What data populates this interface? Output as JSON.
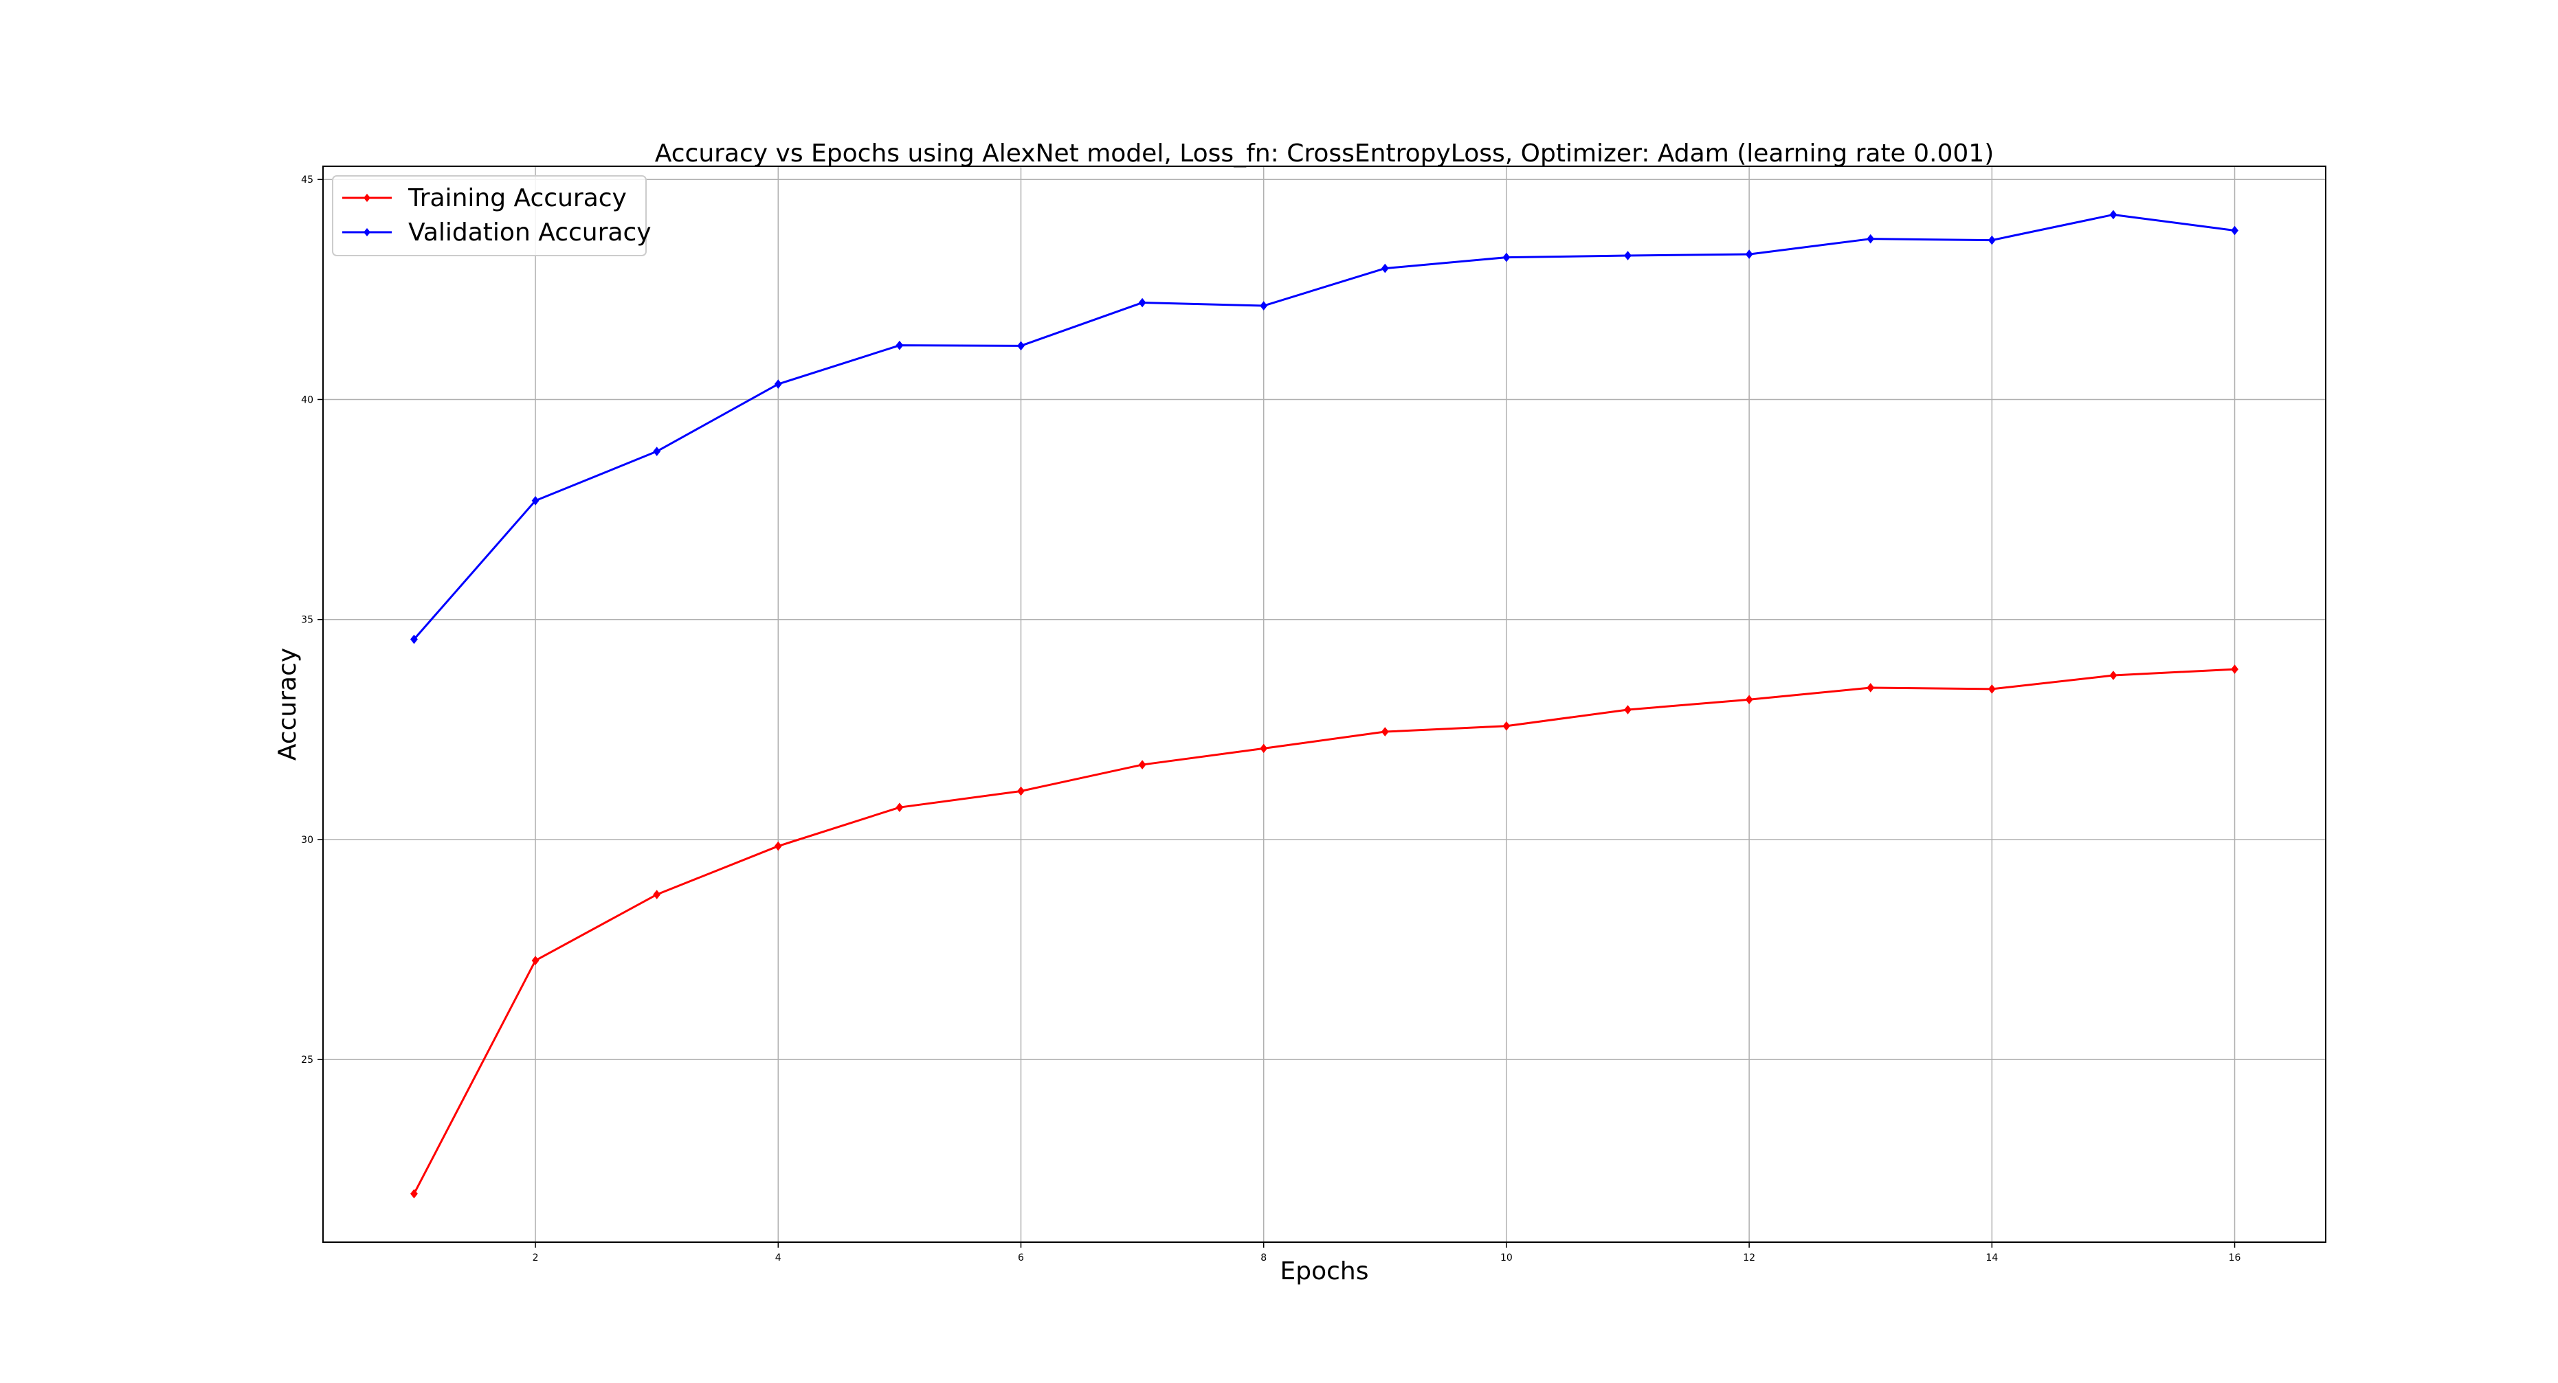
{
  "chart_data": {
    "type": "line",
    "title": "Accuracy vs Epochs using AlexNet model, Loss_fn: CrossEntropyLoss, Optimizer: Adam (learning rate 0.001)",
    "xlabel": "Epochs",
    "ylabel": "Accuracy",
    "xlim": [
      0.25,
      16.75
    ],
    "ylim": [
      20.85,
      45.3
    ],
    "xticks": [
      2,
      4,
      6,
      8,
      10,
      12,
      14,
      16
    ],
    "yticks": [
      25,
      30,
      35,
      40,
      45
    ],
    "grid": true,
    "legend_position": "top-left",
    "x": [
      1,
      2,
      3,
      4,
      5,
      6,
      7,
      8,
      9,
      10,
      11,
      12,
      13,
      14,
      15,
      16
    ],
    "series": [
      {
        "name": "Training Accuracy",
        "color": "#ff0000",
        "marker": "diamond",
        "values": [
          21.95,
          27.25,
          28.75,
          29.85,
          30.73,
          31.1,
          31.7,
          32.07,
          32.45,
          32.58,
          32.95,
          33.18,
          33.45,
          33.42,
          33.73,
          33.87
        ]
      },
      {
        "name": "Validation Accuracy",
        "color": "#0000ff",
        "marker": "diamond",
        "values": [
          34.55,
          37.7,
          38.82,
          40.35,
          41.23,
          41.22,
          42.2,
          42.13,
          42.98,
          43.23,
          43.27,
          43.3,
          43.65,
          43.62,
          44.2,
          43.84
        ]
      }
    ]
  }
}
